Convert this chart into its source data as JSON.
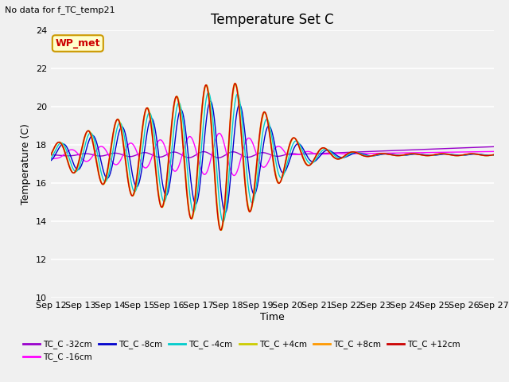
{
  "title": "Temperature Set C",
  "subtitle": "No data for f_TC_temp21",
  "xlabel": "Time",
  "ylabel": "Temperature (C)",
  "ylim": [
    10,
    24
  ],
  "yticks": [
    10,
    12,
    14,
    16,
    18,
    20,
    22,
    24
  ],
  "xtick_labels": [
    "Sep 12",
    "Sep 13",
    "Sep 14",
    "Sep 15",
    "Sep 16",
    "Sep 17",
    "Sep 18",
    "Sep 19",
    "Sep 20",
    "Sep 21",
    "Sep 22",
    "Sep 23",
    "Sep 24",
    "Sep 25",
    "Sep 26",
    "Sep 27"
  ],
  "legend_entries": [
    {
      "label": "TC_C -32cm",
      "color": "#9900cc"
    },
    {
      "label": "TC_C -16cm",
      "color": "#ff00ff"
    },
    {
      "label": "TC_C -8cm",
      "color": "#0000cc"
    },
    {
      "label": "TC_C -4cm",
      "color": "#00cccc"
    },
    {
      "label": "TC_C +4cm",
      "color": "#cccc00"
    },
    {
      "label": "TC_C +8cm",
      "color": "#ff9900"
    },
    {
      "label": "TC_C +12cm",
      "color": "#cc0000"
    }
  ],
  "wp_met_box": {
    "text": "WP_met",
    "facecolor": "#ffffcc",
    "edgecolor": "#cc9900",
    "textcolor": "#cc0000"
  },
  "figsize": [
    6.4,
    4.8
  ],
  "dpi": 100
}
